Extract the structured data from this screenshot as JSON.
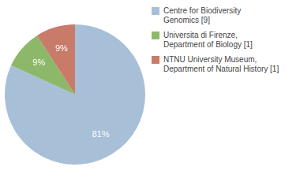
{
  "chart_data": {
    "type": "pie",
    "categories": [
      "Centre for Biodiversity\nGenomics [9]",
      "Universita di Firenze,\nDepartment of Biology [1]",
      "NTNU University Museum,\nDepartment of Natural History [1]"
    ],
    "values": [
      81,
      9,
      9
    ],
    "value_labels": [
      "81%",
      "9%",
      "9%"
    ],
    "data_labels": true,
    "colors": [
      "#a8bfd8",
      "#8db86a",
      "#c97b6a"
    ],
    "legend": "right"
  }
}
